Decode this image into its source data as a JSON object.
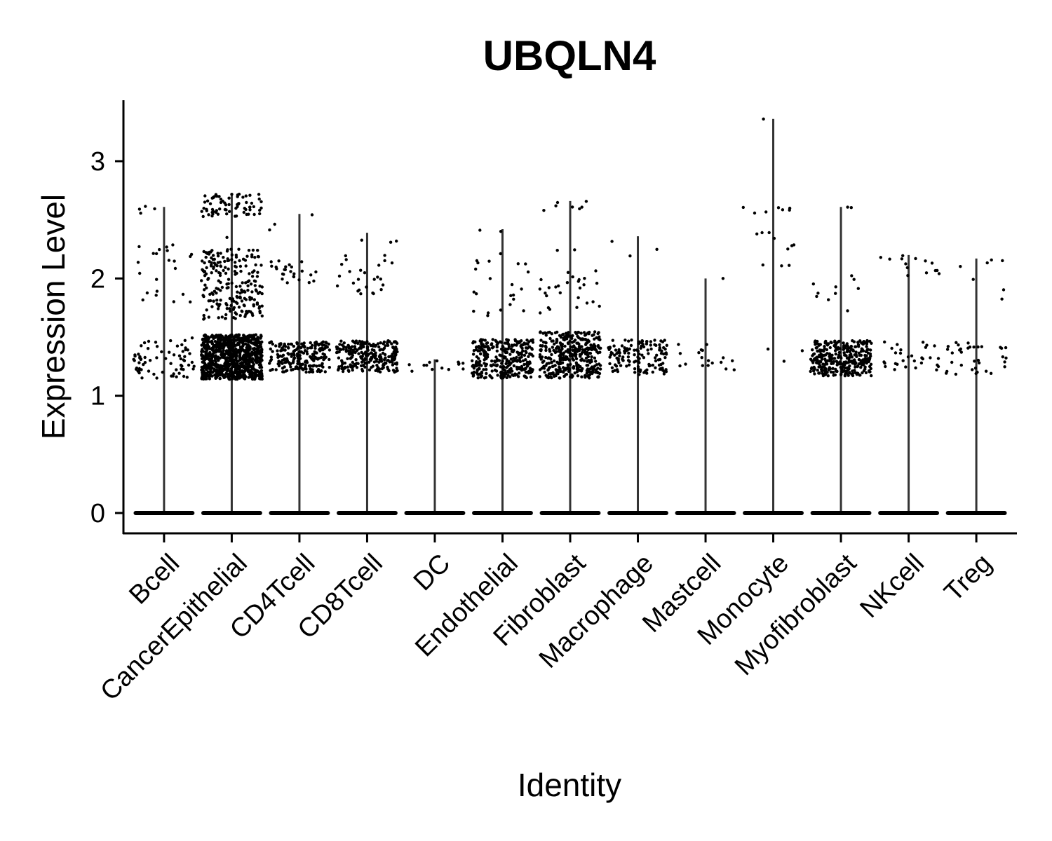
{
  "chart_data": {
    "type": "violin-jitter",
    "title": "UBQLN4",
    "xlabel": "Identity",
    "ylabel": "Expression Level",
    "ylim": [
      -0.17,
      3.52
    ],
    "yticks": [
      0,
      1,
      2,
      3
    ],
    "grid": false,
    "legend": "none",
    "categories": [
      "Bcell",
      "CancerEpithelial",
      "CD4Tcell",
      "CD8Tcell",
      "DC",
      "Endothelial",
      "Fibroblast",
      "Macrophage",
      "Mastcell",
      "Monocyte",
      "Myofibroblast",
      "NKcell",
      "Treg"
    ],
    "max_values": [
      2.61,
      2.72,
      2.55,
      2.39,
      1.31,
      2.42,
      2.66,
      2.36,
      2.0,
      3.36,
      2.61,
      2.2,
      2.17
    ],
    "clusters": [
      [
        [
          1.15,
          1.5,
          70
        ],
        [
          1.75,
          2.3,
          22
        ],
        [
          2.5,
          2.62,
          4
        ]
      ],
      [
        [
          1.14,
          1.52,
          900
        ],
        [
          1.65,
          2.25,
          220
        ],
        [
          2.52,
          2.72,
          70
        ],
        [
          2.35,
          2.35,
          1
        ]
      ],
      [
        [
          1.2,
          1.46,
          220
        ],
        [
          1.95,
          2.15,
          25
        ],
        [
          2.39,
          2.55,
          3
        ]
      ],
      [
        [
          1.2,
          1.47,
          240
        ],
        [
          1.85,
          2.2,
          25
        ],
        [
          2.3,
          2.39,
          3
        ]
      ],
      [
        [
          1.2,
          1.31,
          14
        ]
      ],
      [
        [
          1.15,
          1.48,
          320
        ],
        [
          1.68,
          2.22,
          22
        ],
        [
          2.4,
          2.42,
          2
        ]
      ],
      [
        [
          1.15,
          1.55,
          380
        ],
        [
          1.7,
          2.25,
          28
        ],
        [
          2.58,
          2.66,
          7
        ]
      ],
      [
        [
          1.18,
          1.48,
          140
        ],
        [
          2.0,
          2.36,
          3
        ]
      ],
      [
        [
          1.2,
          1.45,
          18
        ],
        [
          2.0,
          2.0,
          1
        ]
      ],
      [
        [
          1.28,
          1.4,
          3
        ],
        [
          2.1,
          2.4,
          10
        ],
        [
          2.55,
          2.62,
          7
        ],
        [
          3.36,
          3.36,
          1
        ]
      ],
      [
        [
          1.17,
          1.47,
          330
        ],
        [
          1.7,
          2.12,
          10
        ],
        [
          2.6,
          2.61,
          2
        ]
      ],
      [
        [
          1.22,
          1.46,
          30
        ],
        [
          2.0,
          2.2,
          14
        ]
      ],
      [
        [
          1.18,
          1.46,
          35
        ],
        [
          1.8,
          2.17,
          7
        ]
      ]
    ]
  }
}
